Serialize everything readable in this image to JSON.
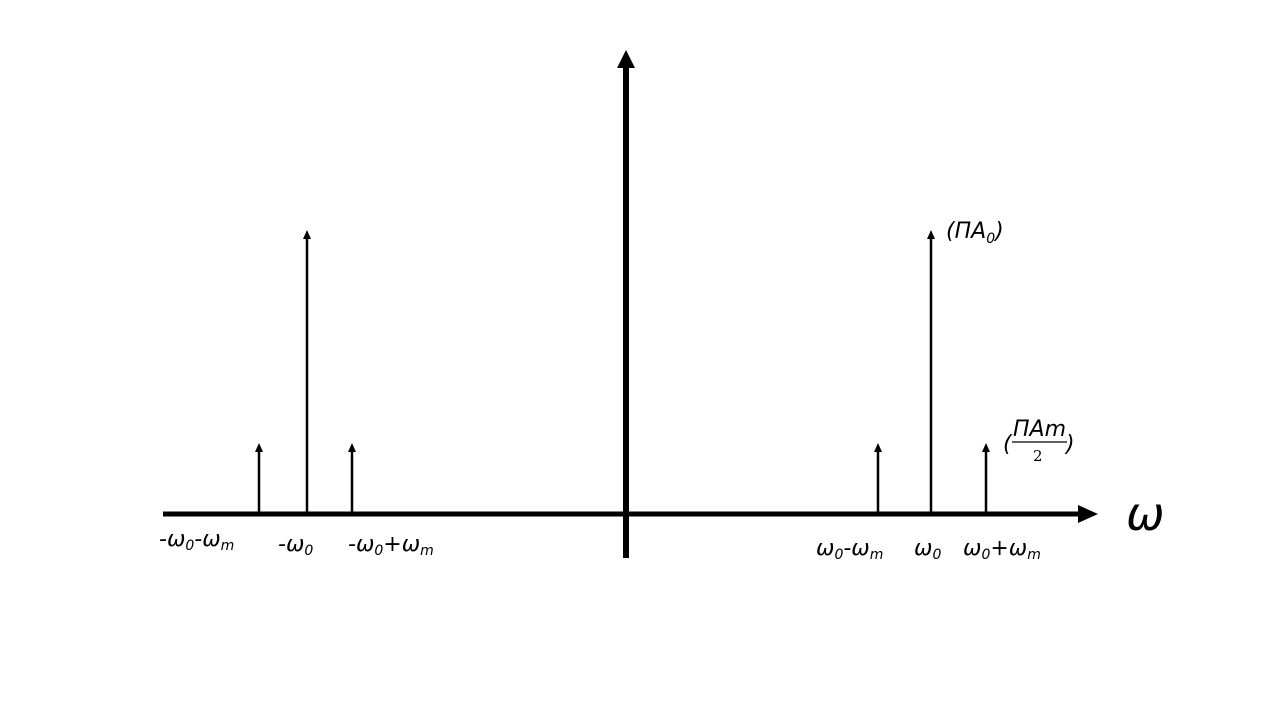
{
  "axis_symbol": "ω",
  "carrier_amplitude_label": {
    "open": "(",
    "text": "ΠA",
    "sub": "0",
    "close": ")"
  },
  "sideband_amplitude_label": {
    "open": "(",
    "numerator": "ΠAm",
    "denominator": "2",
    "close": ")"
  },
  "tick_labels": {
    "neg_lower": {
      "pre": "-ω",
      "sub1": "0",
      "mid": "-ω",
      "sub2": "m"
    },
    "neg_carrier": {
      "pre": "-ω",
      "sub1": "0"
    },
    "neg_upper": {
      "pre": "-ω",
      "sub1": "0",
      "mid": "+ω",
      "sub2": "m"
    },
    "pos_lower": {
      "pre": "ω",
      "sub1": "0",
      "mid": "-ω",
      "sub2": "m"
    },
    "pos_carrier": {
      "pre": "ω",
      "sub1": "0"
    },
    "pos_upper": {
      "pre": "ω",
      "sub1": "0",
      "mid": "+ω",
      "sub2": "m"
    }
  }
}
